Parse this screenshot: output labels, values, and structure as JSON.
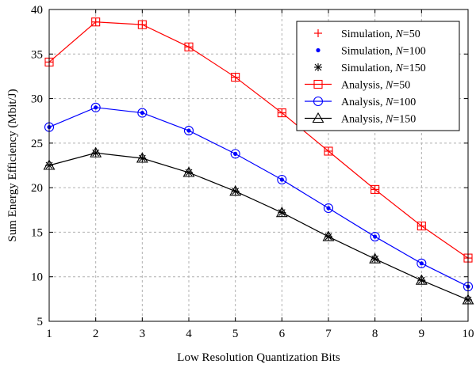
{
  "chart_data": {
    "type": "line",
    "title": "",
    "xlabel": "Low Resolution Quantization Bits",
    "ylabel": "Sum Energy Efficiency (Mbit/J)",
    "xlim": [
      1,
      10
    ],
    "ylim": [
      5,
      40
    ],
    "xticks": [
      1,
      2,
      3,
      4,
      5,
      6,
      7,
      8,
      9,
      10
    ],
    "yticks": [
      5,
      10,
      15,
      20,
      25,
      30,
      35,
      40
    ],
    "grid": true,
    "legend_position": "top-right",
    "x": [
      1,
      2,
      3,
      4,
      5,
      6,
      7,
      8,
      9,
      10
    ],
    "series": [
      {
        "name_prefix": "Simulation, ",
        "name_var": "N",
        "name_suffix": "=50",
        "kind": "simulation",
        "marker": "plus",
        "color": "#ff0000",
        "values": [
          34.1,
          38.6,
          38.3,
          35.8,
          32.4,
          28.4,
          24.1,
          19.8,
          15.7,
          12.1
        ]
      },
      {
        "name_prefix": "Simulation, ",
        "name_var": "N",
        "name_suffix": "=100",
        "kind": "simulation",
        "marker": "dot",
        "color": "#0000ff",
        "values": [
          26.8,
          29.0,
          28.4,
          26.4,
          23.8,
          20.9,
          17.7,
          14.5,
          11.5,
          8.9
        ]
      },
      {
        "name_prefix": "Simulation, ",
        "name_var": "N",
        "name_suffix": "=150",
        "kind": "simulation",
        "marker": "asterisk",
        "color": "#000000",
        "values": [
          22.5,
          23.9,
          23.3,
          21.7,
          19.6,
          17.2,
          14.5,
          12.0,
          9.6,
          7.4
        ]
      },
      {
        "name_prefix": "Analysis, ",
        "name_var": "N",
        "name_suffix": "=50",
        "kind": "analysis",
        "marker": "square",
        "color": "#ff0000",
        "values": [
          34.1,
          38.6,
          38.3,
          35.8,
          32.4,
          28.4,
          24.1,
          19.8,
          15.7,
          12.1
        ]
      },
      {
        "name_prefix": "Analysis, ",
        "name_var": "N",
        "name_suffix": "=100",
        "kind": "analysis",
        "marker": "circle",
        "color": "#0000ff",
        "values": [
          26.8,
          29.0,
          28.4,
          26.4,
          23.8,
          20.9,
          17.7,
          14.5,
          11.5,
          8.9
        ]
      },
      {
        "name_prefix": "Analysis, ",
        "name_var": "N",
        "name_suffix": "=150",
        "kind": "analysis",
        "marker": "triangle",
        "color": "#000000",
        "values": [
          22.5,
          23.9,
          23.3,
          21.7,
          19.6,
          17.2,
          14.5,
          12.0,
          9.6,
          7.4
        ]
      }
    ]
  }
}
